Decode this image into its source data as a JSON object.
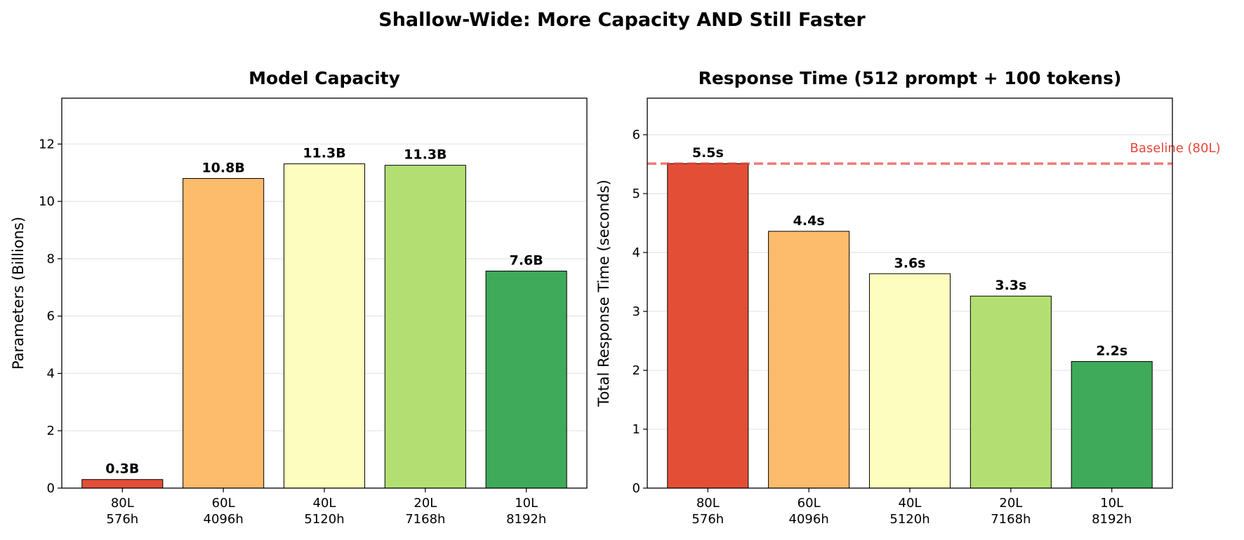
{
  "suptitle": "Shallow-Wide: More Capacity AND Still Faster",
  "chart_data": [
    {
      "type": "bar",
      "title": "Model Capacity",
      "xlabel": "",
      "ylabel": "Parameters (Billions)",
      "categories": [
        "80L\n576h",
        "60L\n4096h",
        "40L\n5120h",
        "20L\n7168h",
        "10L\n8192h"
      ],
      "values": [
        0.3,
        10.8,
        11.31,
        11.26,
        7.57
      ],
      "data_labels": [
        "0.3B",
        "10.8B",
        "11.3B",
        "11.3B",
        "7.6B"
      ],
      "colors": [
        "#e34f36",
        "#fdbb6c",
        "#fdfdbf",
        "#b3df72",
        "#3faa59"
      ],
      "ylim": [
        0,
        13.6
      ],
      "yticks": [
        0,
        2,
        4,
        6,
        8,
        10,
        12
      ],
      "grid": true
    },
    {
      "type": "bar",
      "title": "Response Time (512 prompt + 100 tokens)",
      "xlabel": "",
      "ylabel": "Total Response Time (seconds)",
      "categories": [
        "80L\n576h",
        "60L\n4096h",
        "40L\n5120h",
        "20L\n7168h",
        "10L\n8192h"
      ],
      "values": [
        5.51,
        4.36,
        3.64,
        3.26,
        2.15
      ],
      "data_labels": [
        "5.5s",
        "4.4s",
        "3.6s",
        "3.3s",
        "2.2s"
      ],
      "colors": [
        "#e34f36",
        "#fdbb6c",
        "#fdfdbf",
        "#b3df72",
        "#3faa59"
      ],
      "ylim": [
        0,
        6.62
      ],
      "yticks": [
        0,
        1,
        2,
        3,
        4,
        5,
        6
      ],
      "grid": true,
      "reference_line": {
        "value": 5.51,
        "label": "Baseline (80L)",
        "color": "#e8453c",
        "style": "dashed"
      }
    }
  ]
}
